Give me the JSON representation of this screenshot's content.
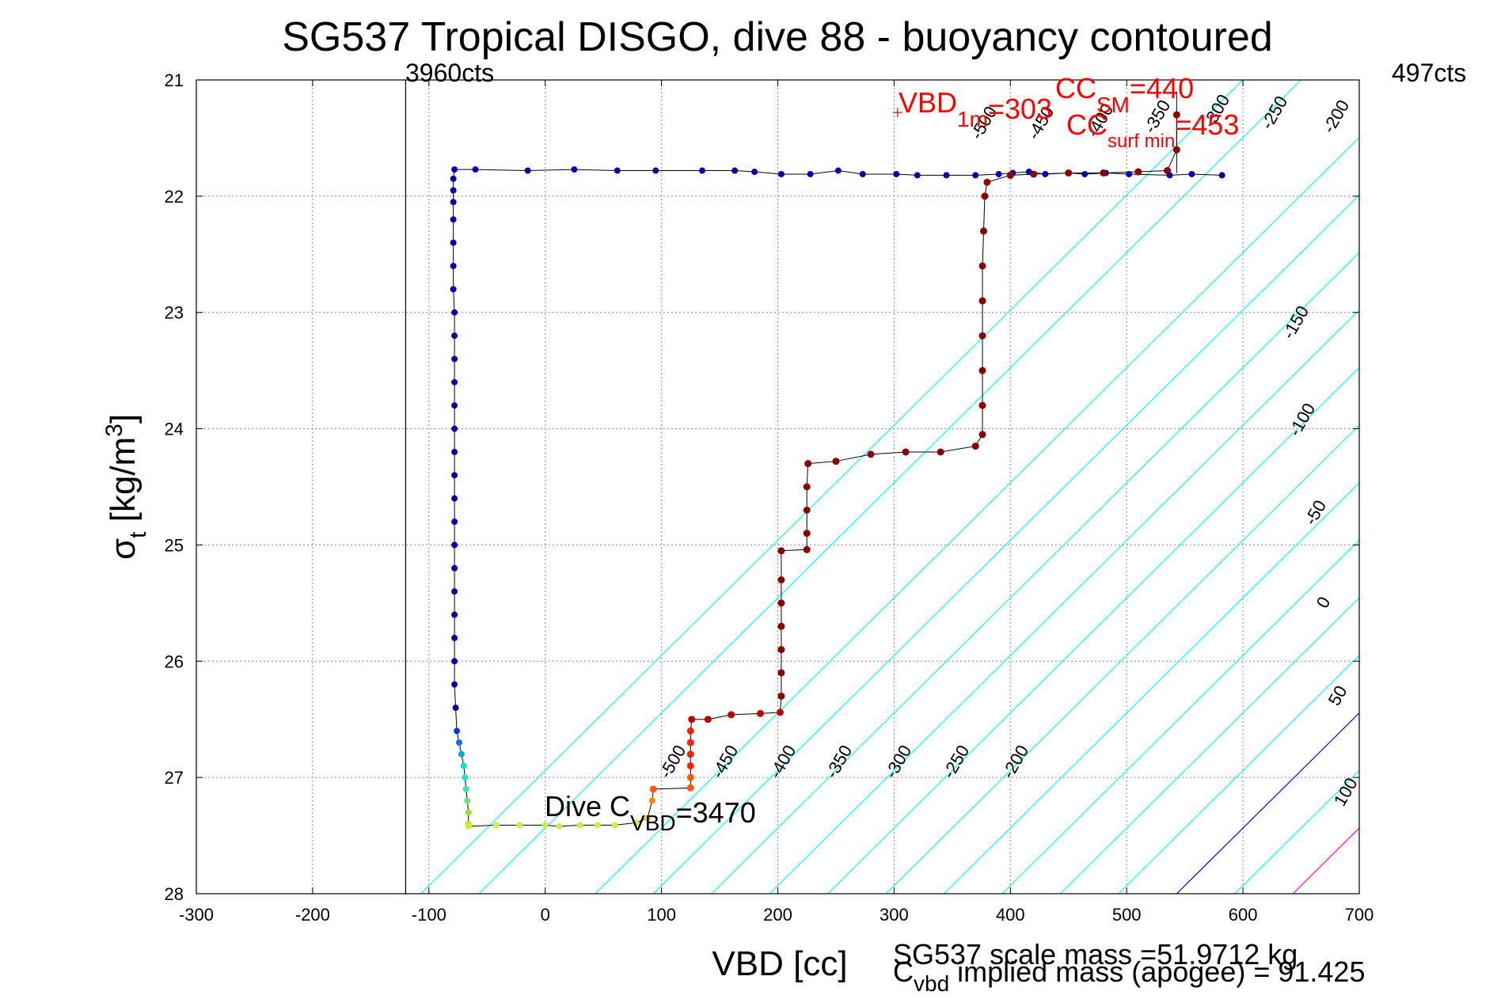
{
  "title": "SG537 Tropical DISGO, dive 88 - buoyancy contoured",
  "xlabel": "VBD [cc]",
  "ylabel_main": "σ",
  "ylabel_sub": "t",
  "ylabel_rest": " [kg/m",
  "ylabel_sup": "3",
  "ylabel_end": "]",
  "footer_line1": "SG537 scale mass =51.9712 kg",
  "footer_c": "C",
  "footer_c_sub": "vbd",
  "footer_line2_rest": " implied mass (apogee) = 91.425",
  "cts_left": "3960cts",
  "cts_right": "497cts",
  "dive_label_main": "Dive C",
  "dive_label_sub": "VBD",
  "dive_label_val": "=3470",
  "vbd_label_main": "VBD",
  "vbd_label_sub": "1m",
  "vbd_label_val": "=303",
  "ccsm_label_main": "CC",
  "ccsm_label_sub": "SM",
  "ccsm_label_val": "=440",
  "ccsurf_label_main": "CC",
  "ccsurf_label_sub": "surf min",
  "ccsurf_label_val": "=453",
  "colors": {
    "cyan_contour": "#00ffff",
    "zero_contour": "#0000ff",
    "hundred_contour": "#ff00ff",
    "annotation_red": "#ff0000",
    "dive_blue": "#00008f",
    "climb_darkred": "#8b0000"
  },
  "chart_data": {
    "type": "scatter",
    "xlim": [
      -300,
      700
    ],
    "ylim": [
      21,
      28
    ],
    "y_reversed": true,
    "grid": true,
    "x_ticks": [
      -300,
      -200,
      -100,
      0,
      100,
      200,
      300,
      400,
      500,
      600,
      700
    ],
    "y_ticks": [
      21,
      22,
      23,
      24,
      25,
      26,
      27,
      28
    ],
    "vertical_lines": [
      -120,
      543
    ],
    "contours": {
      "slope_cc_per_sigma": 101,
      "cyan_levels": [
        -500,
        -450,
        -400,
        -350,
        -300,
        -250,
        -200,
        -150,
        -100,
        -50,
        50
      ],
      "zero_level": 0,
      "hundred_level": 100,
      "upper_labels": [
        "-500",
        "-450",
        "-400",
        "-350",
        "-300",
        "-250",
        "-200"
      ],
      "lower_labels": [
        "-500",
        "-450",
        "-400",
        "-350",
        "-300",
        "-250",
        "-200"
      ],
      "right_labels": [
        "-150",
        "-100",
        "-50",
        "0",
        "50",
        "100"
      ]
    },
    "dive_series": {
      "name": "dive",
      "points": [
        [
          582,
          21.82
        ],
        [
          556,
          21.81
        ],
        [
          537,
          21.82
        ],
        [
          502,
          21.81
        ],
        [
          482,
          21.8
        ],
        [
          464,
          21.81
        ],
        [
          450,
          21.8
        ],
        [
          430,
          21.81
        ],
        [
          416,
          21.79
        ],
        [
          402,
          21.8
        ],
        [
          390,
          21.81
        ],
        [
          370,
          21.82
        ],
        [
          345,
          21.82
        ],
        [
          320,
          21.82
        ],
        [
          302,
          21.81
        ],
        [
          273,
          21.81
        ],
        [
          252,
          21.78
        ],
        [
          228,
          21.81
        ],
        [
          203,
          21.81
        ],
        [
          180,
          21.79
        ],
        [
          163,
          21.78
        ],
        [
          135,
          21.78
        ],
        [
          95,
          21.78
        ],
        [
          62,
          21.78
        ],
        [
          25,
          21.77
        ],
        [
          -15,
          21.78
        ],
        [
          -60,
          21.77
        ],
        [
          -78,
          21.77
        ],
        [
          -79,
          21.85
        ],
        [
          -79,
          21.95
        ],
        [
          -79,
          22.05
        ],
        [
          -79,
          22.2
        ],
        [
          -79,
          22.4
        ],
        [
          -79,
          22.6
        ],
        [
          -79,
          22.8
        ],
        [
          -78,
          23.0
        ],
        [
          -78,
          23.2
        ],
        [
          -78,
          23.4
        ],
        [
          -78,
          23.6
        ],
        [
          -78,
          23.8
        ],
        [
          -78,
          24.0
        ],
        [
          -78,
          24.2
        ],
        [
          -78,
          24.4
        ],
        [
          -78,
          24.6
        ],
        [
          -78,
          24.8
        ],
        [
          -78,
          25.0
        ],
        [
          -78,
          25.2
        ],
        [
          -78,
          25.4
        ],
        [
          -78,
          25.6
        ],
        [
          -78,
          25.8
        ],
        [
          -78,
          26.0
        ],
        [
          -78,
          26.2
        ],
        [
          -77,
          26.4
        ],
        [
          -76,
          26.6
        ],
        [
          -74,
          26.7
        ],
        [
          -72,
          26.8
        ],
        [
          -70,
          26.9
        ],
        [
          -69,
          27.0
        ],
        [
          -68,
          27.1
        ],
        [
          -67,
          27.2
        ],
        [
          -66,
          27.3
        ],
        [
          -66,
          27.4
        ]
      ]
    },
    "bottom_series": {
      "name": "apogee",
      "points": [
        [
          -66,
          27.42
        ],
        [
          -42,
          27.41
        ],
        [
          -22,
          27.41
        ],
        [
          0,
          27.41
        ],
        [
          12,
          27.42
        ],
        [
          30,
          27.41
        ],
        [
          45,
          27.41
        ],
        [
          60,
          27.41
        ],
        [
          78,
          27.39
        ],
        [
          88,
          27.35
        ],
        [
          92,
          27.2
        ],
        [
          93,
          27.1
        ]
      ]
    },
    "climb_series": {
      "name": "climb",
      "points": [
        [
          93,
          27.1
        ],
        [
          125,
          27.09
        ],
        [
          125,
          27.0
        ],
        [
          125,
          26.9
        ],
        [
          125,
          26.8
        ],
        [
          125,
          26.7
        ],
        [
          125,
          26.6
        ],
        [
          126,
          26.5
        ],
        [
          140,
          26.5
        ],
        [
          160,
          26.46
        ],
        [
          185,
          26.45
        ],
        [
          202,
          26.44
        ],
        [
          203,
          26.3
        ],
        [
          203,
          26.1
        ],
        [
          203,
          25.9
        ],
        [
          203,
          25.7
        ],
        [
          203,
          25.5
        ],
        [
          203,
          25.3
        ],
        [
          203,
          25.05
        ],
        [
          225,
          25.04
        ],
        [
          225,
          24.9
        ],
        [
          225,
          24.7
        ],
        [
          225,
          24.5
        ],
        [
          226,
          24.3
        ],
        [
          250,
          24.28
        ],
        [
          280,
          24.22
        ],
        [
          310,
          24.2
        ],
        [
          340,
          24.2
        ],
        [
          370,
          24.15
        ],
        [
          376,
          24.05
        ],
        [
          376,
          23.8
        ],
        [
          376,
          23.5
        ],
        [
          376,
          23.2
        ],
        [
          376,
          22.9
        ],
        [
          376,
          22.6
        ],
        [
          377,
          22.3
        ],
        [
          378,
          22.0
        ],
        [
          380,
          21.88
        ],
        [
          400,
          21.82
        ],
        [
          420,
          21.81
        ],
        [
          450,
          21.8
        ],
        [
          480,
          21.8
        ],
        [
          510,
          21.79
        ],
        [
          535,
          21.78
        ],
        [
          543,
          21.6
        ],
        [
          543,
          21.3
        ]
      ]
    },
    "annotations": {
      "cts_left_x": -120,
      "vbd_1m_marker": [
        303,
        21.28
      ]
    }
  }
}
